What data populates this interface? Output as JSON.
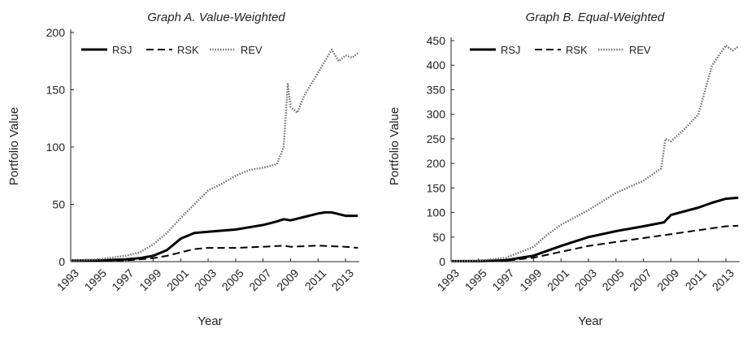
{
  "chart_data": [
    {
      "type": "line",
      "title": "Graph A. Value-Weighted",
      "xlabel": "Year",
      "ylabel": "Portfolio Value",
      "xlim": [
        1993,
        2014
      ],
      "ylim": [
        0,
        200
      ],
      "yticks": [
        0,
        50,
        100,
        150,
        200
      ],
      "xticks": [
        1993,
        1995,
        1997,
        1999,
        2001,
        2003,
        2005,
        2007,
        2009,
        2011,
        2013
      ],
      "legend_position": "top-left",
      "grid": false,
      "series": [
        {
          "name": "RSJ",
          "style": "solid",
          "color": "#000000",
          "x": [
            1993,
            1995,
            1997,
            1998,
            1999,
            2000,
            2000.5,
            2001,
            2002,
            2003,
            2004,
            2005,
            2006,
            2007,
            2008,
            2008.5,
            2009,
            2010,
            2011,
            2011.5,
            2012,
            2013,
            2013.9
          ],
          "values": [
            1,
            1,
            2,
            3,
            5,
            10,
            15,
            20,
            25,
            26,
            27,
            28,
            30,
            32,
            35,
            37,
            36,
            39,
            42,
            43,
            43,
            40,
            40
          ]
        },
        {
          "name": "RSK",
          "style": "dashed",
          "color": "#000000",
          "x": [
            1993,
            1995,
            1997,
            1999,
            2000,
            2001,
            2002,
            2003,
            2005,
            2007,
            2008.5,
            2009,
            2011,
            2013,
            2013.9
          ],
          "values": [
            1,
            1,
            1,
            3,
            5,
            8,
            11,
            12,
            12,
            13,
            14,
            13,
            14,
            13,
            12
          ]
        },
        {
          "name": "REV",
          "style": "dotted",
          "color": "#777777",
          "x": [
            1993,
            1995,
            1997,
            1998,
            1999,
            2000,
            2001,
            2002,
            2003,
            2004,
            2005,
            2006,
            2007,
            2008,
            2008.5,
            2008.8,
            2009,
            2009.5,
            2010,
            2011,
            2011.5,
            2012,
            2012.5,
            2013,
            2013.5,
            2013.9
          ],
          "values": [
            1,
            2,
            5,
            8,
            15,
            25,
            38,
            50,
            62,
            68,
            75,
            80,
            82,
            85,
            100,
            155,
            135,
            130,
            145,
            165,
            175,
            185,
            175,
            180,
            178,
            182
          ]
        }
      ]
    },
    {
      "type": "line",
      "title": "Graph B. Equal-Weighted",
      "xlabel": "Year",
      "ylabel": "Portfolio Value",
      "xlim": [
        1993,
        2014
      ],
      "ylim": [
        0,
        450
      ],
      "yticks": [
        0,
        50,
        100,
        150,
        200,
        250,
        300,
        350,
        400,
        450
      ],
      "xticks": [
        1993,
        1995,
        1997,
        1999,
        2001,
        2003,
        2005,
        2007,
        2009,
        2011,
        2013
      ],
      "legend_position": "top-left",
      "grid": false,
      "series": [
        {
          "name": "RSJ",
          "style": "solid",
          "color": "#000000",
          "x": [
            1993,
            1995,
            1997,
            1999,
            2001,
            2003,
            2005,
            2007,
            2008.5,
            2009,
            2011,
            2012,
            2013,
            2013.9
          ],
          "values": [
            1,
            1,
            3,
            12,
            32,
            50,
            62,
            72,
            80,
            95,
            110,
            120,
            128,
            130
          ]
        },
        {
          "name": "RSK",
          "style": "dashed",
          "color": "#000000",
          "x": [
            1993,
            1995,
            1997,
            1999,
            2001,
            2003,
            2005,
            2007,
            2009,
            2011,
            2013,
            2013.9
          ],
          "values": [
            1,
            1,
            2,
            8,
            20,
            32,
            40,
            48,
            56,
            64,
            72,
            73
          ]
        },
        {
          "name": "REV",
          "style": "dotted",
          "color": "#777777",
          "x": [
            1993,
            1995,
            1997,
            1999,
            2000,
            2001,
            2003,
            2005,
            2007,
            2008.3,
            2008.6,
            2009,
            2010,
            2011,
            2011.5,
            2012,
            2012.5,
            2013,
            2013.5,
            2013.9
          ],
          "values": [
            1,
            2,
            8,
            30,
            55,
            75,
            105,
            140,
            165,
            190,
            250,
            245,
            270,
            300,
            350,
            400,
            420,
            440,
            430,
            438
          ]
        }
      ]
    }
  ]
}
